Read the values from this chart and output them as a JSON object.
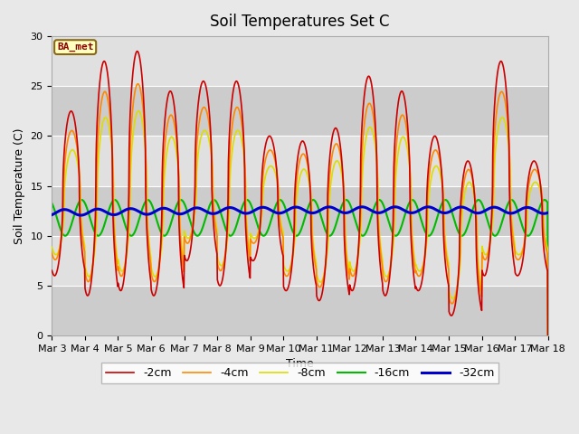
{
  "title": "Soil Temperatures Set C",
  "xlabel": "Time",
  "ylabel": "Soil Temperature (C)",
  "ylim": [
    0,
    30
  ],
  "annotation": "BA_met",
  "colors": {
    "-2cm": "#cc0000",
    "-4cm": "#ff8800",
    "-8cm": "#dddd00",
    "-16cm": "#00bb00",
    "-32cm": "#0000cc"
  },
  "legend_labels": [
    "-2cm",
    "-4cm",
    "-8cm",
    "-16cm",
    "-32cm"
  ],
  "bg_color": "#d8d8d8",
  "band_colors": [
    "#e8e8e8",
    "#d0d0d0"
  ],
  "title_fontsize": 12,
  "label_fontsize": 9,
  "tick_fontsize": 8
}
